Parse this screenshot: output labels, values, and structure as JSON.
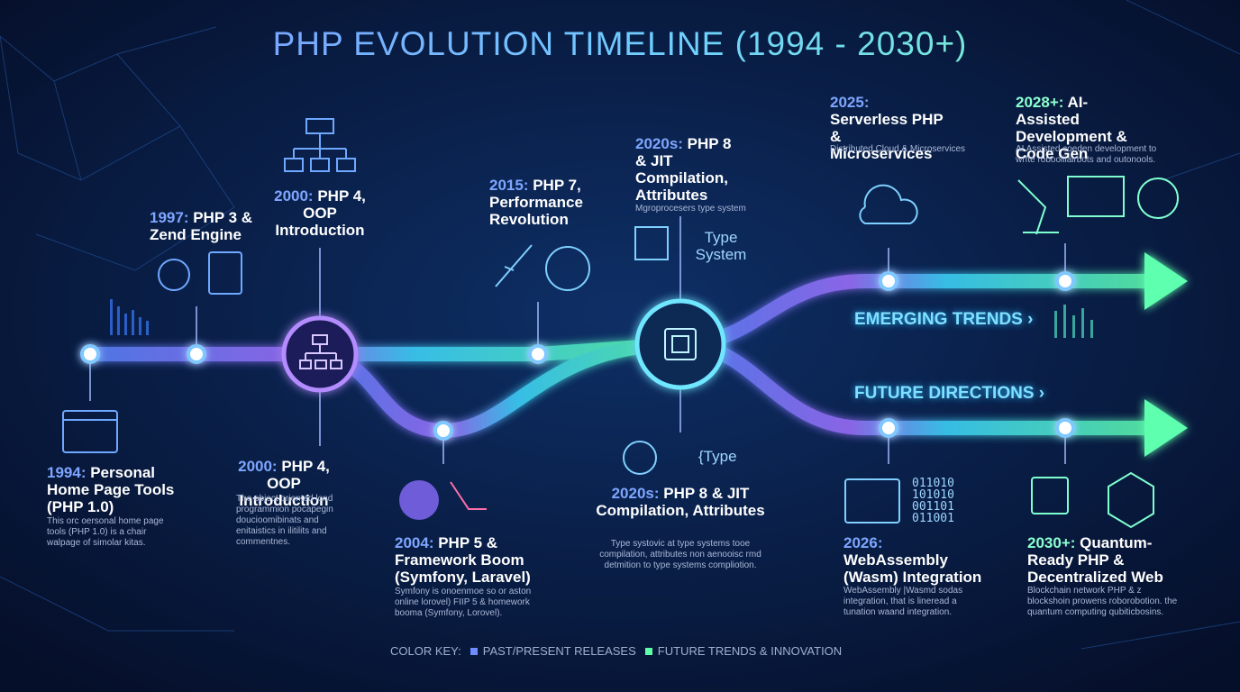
{
  "header": {
    "title": "PHP EVOLUTION TIMELINE (1994 - 2030+)"
  },
  "milestones": [
    {
      "year": "1994:",
      "label": "Personal Home Page Tools (PHP 1.0)",
      "description": "This orc oersonal home page tools (PHP 1.0) is a chair walpage of simolar kitas."
    },
    {
      "year": "1997:",
      "label": "PHP 3 & Zend Engine"
    },
    {
      "year": "2000:",
      "label": "PHP 4, OOP Introduction"
    },
    {
      "year": "2000:",
      "label": "PHP 4, OOP Introduction",
      "description": "The object oriented lond programmion pocapegin doucioomibinats and enitaistics in ilitilits and commentnes."
    },
    {
      "year": "2004:",
      "label": "PHP 5 & Framework Boom (Symfony, Laravel)",
      "description": "Symfony is onoenmoe so or aston online lorovel) FIIP 5 & homework booma (Symfony, Lorovel)."
    },
    {
      "year": "2015:",
      "label": "PHP 7, Performance Revolution"
    },
    {
      "year": "2020s:",
      "label": "PHP 8 & JIT Compilation, Attributes",
      "description": "Mgroprocesers type system",
      "icon_label": "Type System"
    },
    {
      "year": "2020s:",
      "label": "PHP 8 & JIT Compilation, Attributes",
      "description": "Type systovic at type systems tooe compilation, attributes non aenooisc rmd detmition to type systems compliotion.",
      "icon_label": "{Type"
    },
    {
      "year": "2025:",
      "label": "Serverless PHP & Microservices",
      "description": "Distributed Cloud & Microservices"
    },
    {
      "year": "2028+:",
      "label": "AI-Assisted Development & Code Gen",
      "description": "AI Assisted coeden development to wrfte robooliiairbots and outonools."
    },
    {
      "year": "2026:",
      "label": "WebAssembly (Wasm) Integration",
      "description": "WebAssembly |Wasmd sodas integration, that is lineread a tunation waand integration.",
      "icon_label": "011010 101010 001101 011001"
    },
    {
      "year": "2030+:",
      "label": "Quantum-Ready PHP & Decentralized Web",
      "description": "Blockchain network PHP & z blockshoin prowens roborobotion. the quantum computing qubiticbosins."
    }
  ],
  "branches": [
    "EMERGING TRENDS ›",
    "FUTURE DIRECTIONS ›"
  ],
  "color_key": {
    "title": "COLOR KEY:",
    "items": [
      "PAST/PRESENT RELEASES",
      "FUTURE TRENDS & INNOVATION"
    ]
  }
}
